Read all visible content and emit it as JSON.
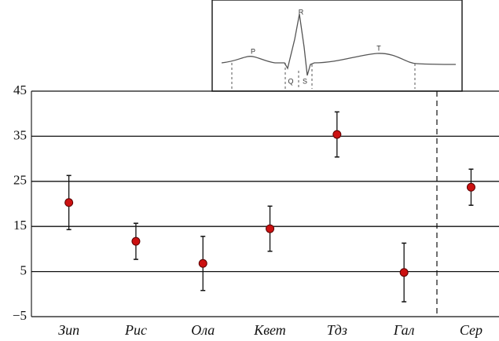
{
  "chart_data": {
    "type": "errorbar",
    "categories": [
      "Зип",
      "Рис",
      "Ола",
      "Квет",
      "Тдз",
      "Гал",
      "Сер"
    ],
    "values": [
      20.3,
      11.7,
      6.8,
      14.5,
      35.4,
      4.8,
      23.7
    ],
    "errors": [
      6,
      4,
      6,
      5,
      5,
      6.5,
      4
    ],
    "color": "#cc1111",
    "ylim": [
      -5,
      45
    ],
    "yticks": [
      {
        "value": -5,
        "label": "−5"
      },
      5,
      15,
      25,
      35,
      45
    ],
    "grid": true
  },
  "inset": {
    "labels": [
      "P",
      "R",
      "Q",
      "S",
      "T"
    ]
  }
}
